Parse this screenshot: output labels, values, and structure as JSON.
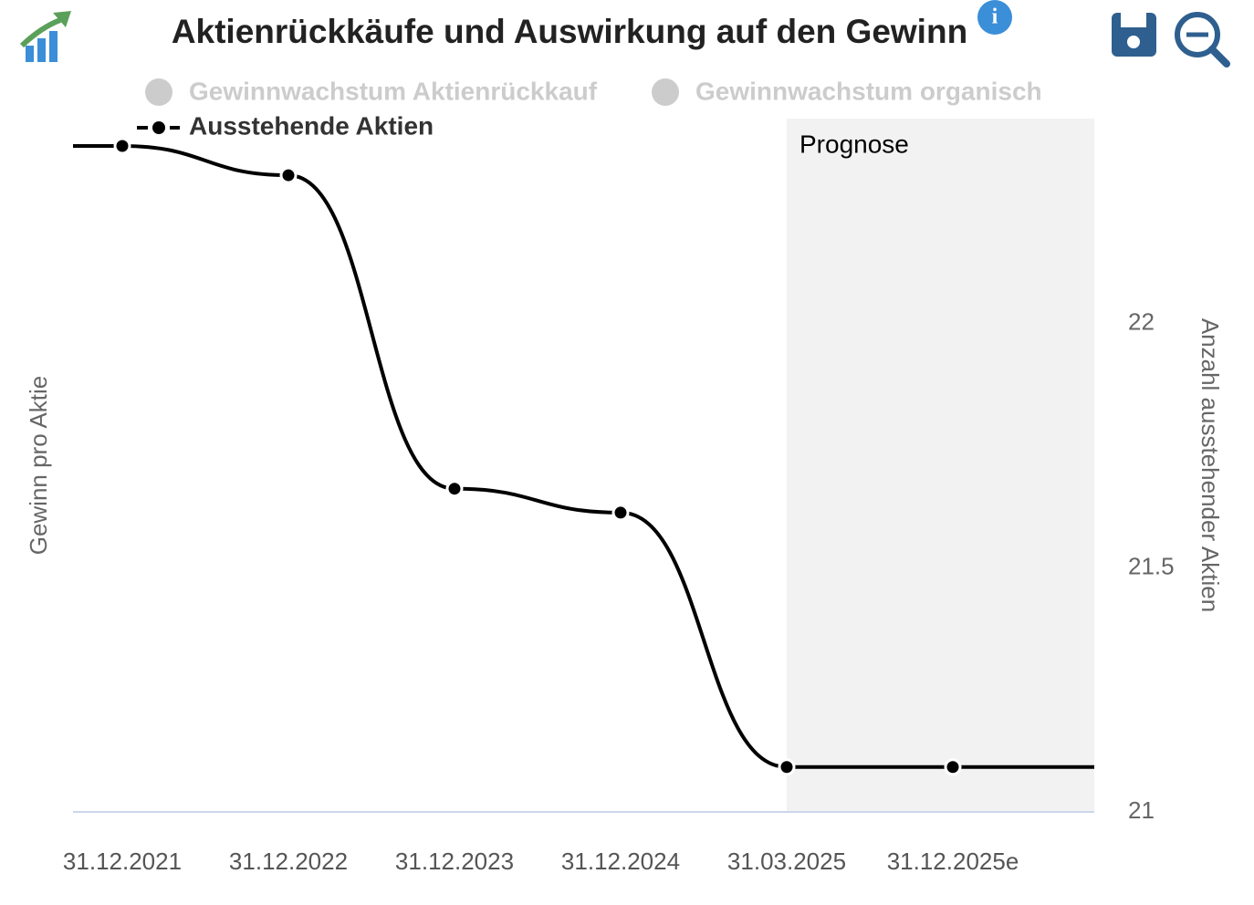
{
  "chart_data": {
    "type": "line",
    "title": "Aktienrückkäufe und Auswirkung auf den Gewinn",
    "y_label": "Gewinn pro Aktie",
    "y2_label": "Anzahl ausstehender Aktien",
    "categories": [
      "31.12.2021",
      "31.12.2022",
      "31.12.2023",
      "31.12.2024",
      "31.03.2025",
      "31.12.2025e"
    ],
    "series": [
      {
        "name": "Ausstehende Aktien",
        "color": "#000000",
        "axis": "y2",
        "values": [
          22.364,
          22.304,
          21.662,
          21.613,
          21.092,
          21.092
        ]
      }
    ],
    "hidden_series": [
      {
        "name": "Gewinnwachstum Aktienrückkauf",
        "color": "#cccccc"
      },
      {
        "name": "Gewinnwachstum organisch",
        "color": "#cccccc"
      }
    ],
    "y2lim": [
      21,
      22.42
    ],
    "y2ticks": [
      21,
      21.5,
      22
    ],
    "shaded_region": {
      "label": "Prognose",
      "from": "31.03.2025",
      "color": "#f2f2f2"
    }
  }
}
